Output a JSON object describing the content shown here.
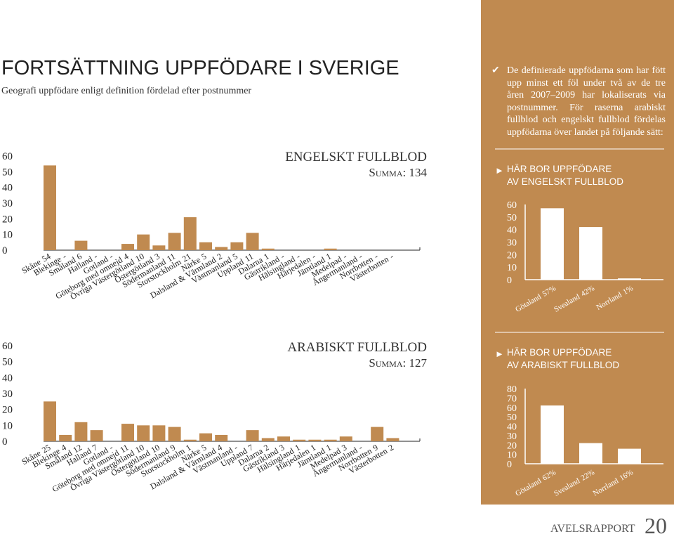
{
  "header": {
    "title": "FORTSÄTTNING UPPFÖDARE I SVERIGE",
    "subtitle": "Geografi uppfödare enligt definition fördelad efter postnummer"
  },
  "sidebar": {
    "intro": "De definierade uppfödarna som har fött upp minst ett föl under två av de tre åren 2007–2009 har lokaliserats via postnummer. För raserna arabiskt fullblod och engelskt fullblod fördelas uppfödarna över landet på följande sätt:"
  },
  "chart_data": [
    {
      "type": "bar",
      "title": "ENGELSKT FULLBLOD",
      "total_label": "Summa: 134",
      "categories": [
        "Skåne",
        "Blekinge",
        "Småland",
        "Halland",
        "Gotland",
        "Göteborg med omnejd",
        "Övriga Västergötland",
        "Östergötland",
        "Södermanland",
        "Storstockholm",
        "Närke",
        "Dalsland & Värmland",
        "Västmanland",
        "Uppland",
        "Dalarna",
        "Gästrikland",
        "Hälsingland",
        "Härjedalen",
        "Jämtland",
        "Medelpad",
        "Ångermanland",
        "Norrbotten",
        "Västerbotten"
      ],
      "values": [
        54,
        null,
        6,
        null,
        null,
        4,
        10,
        3,
        11,
        21,
        5,
        2,
        5,
        11,
        1,
        null,
        null,
        null,
        1,
        null,
        null,
        null,
        null
      ],
      "value_labels": [
        "54",
        "-",
        "6",
        "-",
        "-",
        "4",
        "10",
        "3",
        "11",
        "21",
        "5",
        "2",
        "5",
        "11",
        "1",
        "-",
        "-",
        "-",
        "1",
        "-",
        "-",
        "-",
        "-"
      ],
      "ylim": [
        0,
        60
      ],
      "yticks": [
        0,
        10,
        20,
        30,
        40,
        50,
        60
      ],
      "color": "#c08a50"
    },
    {
      "type": "bar",
      "title": "ARABISKT FULLBLOD",
      "total_label": "Summa: 127",
      "categories": [
        "Skåne",
        "Blekinge",
        "Småland",
        "Halland",
        "Gotland",
        "Göteborg med omnejd",
        "Övriga Västergötland",
        "Östergötland",
        "Södermanland",
        "Storstockholm",
        "Närke",
        "Dalsland & Värmland",
        "Västmanland",
        "Uppland",
        "Dalarna",
        "Gästrikland",
        "Hälsingland",
        "Härjedalen",
        "Jämtland",
        "Medelpad",
        "Ångermanland",
        "Norrbotten",
        "Västerbotten"
      ],
      "values": [
        25,
        4,
        12,
        7,
        null,
        11,
        10,
        10,
        9,
        1,
        5,
        4,
        null,
        7,
        2,
        3,
        1,
        1,
        1,
        3,
        null,
        9,
        2
      ],
      "value_labels": [
        "25",
        "4",
        "12",
        "7",
        "-",
        "11",
        "10",
        "10",
        "9",
        "1",
        "5",
        "4",
        "-",
        "7",
        "2",
        "3",
        "1",
        "1",
        "1",
        "3",
        "-",
        "9",
        "2"
      ],
      "ylim": [
        0,
        60
      ],
      "yticks": [
        0,
        10,
        20,
        30,
        40,
        50,
        60
      ],
      "color": "#c08a50"
    },
    {
      "type": "bar",
      "title": [
        "HÄR BOR UPPFÖDARE",
        "AV ENGELSKT FULLBLOD"
      ],
      "categories": [
        "Götaland",
        "Svealand",
        "Norrland"
      ],
      "values": [
        57,
        42,
        1
      ],
      "value_labels": [
        "57%",
        "42%",
        "1%"
      ],
      "ylim": [
        0,
        60
      ],
      "yticks": [
        0,
        10,
        20,
        30,
        40,
        50,
        60
      ],
      "color": "#ffffff"
    },
    {
      "type": "bar",
      "title": [
        "HÄR BOR UPPFÖDARE",
        "AV ARABISKT FULLBLOD"
      ],
      "categories": [
        "Götaland",
        "Svealand",
        "Norrland"
      ],
      "values": [
        62,
        22,
        16
      ],
      "value_labels": [
        "62%",
        "22%",
        "16%"
      ],
      "ylim": [
        0,
        80
      ],
      "yticks": [
        0,
        10,
        20,
        30,
        40,
        50,
        60,
        70,
        80
      ],
      "color": "#ffffff"
    }
  ],
  "footer": {
    "label": "AVELSRAPPORT",
    "page": "20"
  }
}
